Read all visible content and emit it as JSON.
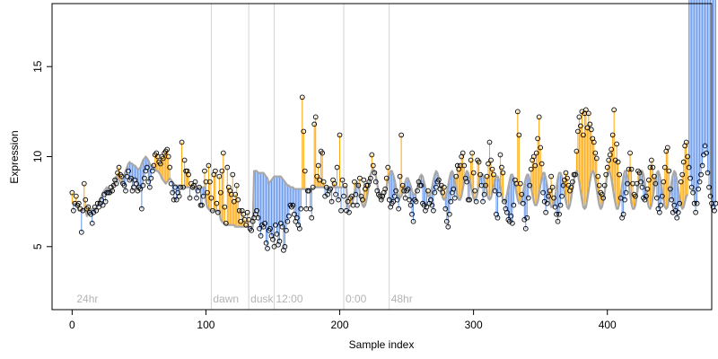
{
  "chart_data": {
    "type": "scatter",
    "xlabel": "Sample index",
    "ylabel": "Expression",
    "xlim": [
      -15,
      478
    ],
    "ylim": [
      1.5,
      18.5
    ],
    "x_ticks": [
      0,
      100,
      200,
      300,
      400
    ],
    "y_ticks": [
      5,
      10,
      15
    ],
    "grid": false,
    "phase_markers": [
      {
        "x": 2,
        "label": "24hr",
        "line": false
      },
      {
        "x": 104,
        "label": "dawn",
        "line": true
      },
      {
        "x": 132,
        "label": "dusk",
        "line": true
      },
      {
        "x": 151,
        "label": "12:00",
        "line": true
      },
      {
        "x": 203,
        "label": "0:00",
        "line": true
      },
      {
        "x": 237,
        "label": "48hr",
        "line": true
      }
    ],
    "colors": {
      "above_fit": "#ffa500",
      "below_fit": "#6495ed",
      "fit_line": "#a8a8a8",
      "points": "#000000",
      "phase_line": "#d3d3d3",
      "phase_label": "#b4b4b4"
    },
    "series": [
      {
        "type": "fit-line",
        "values": [
          7.4,
          7.4,
          7.4,
          7.3,
          7.2,
          7.0,
          7.0,
          7.0,
          7.0,
          7.1,
          7.0,
          6.7,
          6.9,
          7.0,
          7.1,
          7.1,
          7.1,
          7.0,
          7.2,
          7.3,
          7.5,
          7.6,
          7.8,
          8.0,
          8.1,
          8.2,
          8.3,
          8.2,
          8.1,
          8.0,
          8.1,
          8.5,
          8.8,
          8.9,
          8.8,
          8.7,
          8.6,
          8.5,
          8.7,
          9.0,
          9.2,
          9.4,
          9.6,
          9.7,
          9.6,
          9.6,
          9.5,
          9.5,
          9.4,
          9.3,
          9.3,
          9.4,
          9.6,
          9.8,
          9.9,
          10.0,
          9.9,
          9.8,
          9.6,
          9.5,
          9.5,
          9.4,
          9.3,
          9.2,
          9.2,
          9.1,
          9.0,
          8.8,
          8.7,
          8.6,
          8.5,
          8.6,
          8.7,
          8.8,
          8.7,
          8.6,
          8.5,
          8.4,
          8.4,
          8.4,
          8.4,
          8.4,
          8.3,
          8.3,
          8.3,
          8.3,
          8.3,
          8.3,
          8.3,
          8.3,
          8.2,
          8.2,
          8.2,
          8.3,
          8.3,
          8.3,
          8.3,
          8.3,
          8.3,
          8.3,
          7.5,
          7.2,
          7.1,
          7.0,
          7.0,
          7.0,
          7.0,
          7.0,
          7.0,
          7.0,
          7.0,
          6.5,
          6.4,
          6.3,
          6.3,
          6.2,
          6.2,
          6.2,
          6.2,
          6.2,
          6.2,
          6.2,
          6.1,
          6.1,
          6.1,
          6.1,
          6.1,
          6.1,
          6.1,
          6.1,
          6.1,
          6.1,
          6.1,
          6.1,
          6.1,
          6.1,
          9.2,
          9.2,
          9.2,
          9.1,
          9.1,
          9.1,
          9.1,
          9.1,
          9.0,
          8.9,
          8.8,
          8.5,
          8.6,
          8.7,
          8.8,
          8.9,
          8.9,
          8.9,
          8.9,
          8.9,
          8.9,
          8.8,
          8.7,
          8.6,
          8.5,
          8.4,
          8.4,
          8.3,
          8.3,
          8.3,
          8.2,
          8.2,
          8.2,
          8.2,
          8.2,
          8.2,
          8.2,
          8.2,
          8.2,
          8.2,
          8.2,
          8.2,
          8.2,
          8.2,
          8.2,
          8.3,
          8.3,
          8.3,
          8.3,
          8.3,
          8.3,
          8.3,
          8.3,
          8.3,
          8.3,
          8.3,
          8.3,
          8.3,
          8.3,
          8.3,
          8.3,
          8.3,
          8.3,
          8.3,
          8.3,
          8.3,
          8.3,
          8.3,
          8.3,
          8.3,
          7.2,
          7.2,
          7.3,
          7.4,
          7.6,
          8.0,
          8.4,
          8.6,
          8.4,
          8.0,
          7.6,
          7.3,
          7.2,
          7.3,
          7.6,
          8.0,
          8.5,
          9.0,
          9.2,
          9.3,
          9.2,
          8.9,
          8.5,
          8.1,
          7.8,
          7.6,
          7.6,
          7.8,
          8.0,
          8.3,
          8.7,
          9.0,
          9.2,
          9.2,
          9.0,
          8.7,
          8.3,
          8.0,
          7.8,
          7.7,
          7.8,
          8.0,
          8.3,
          8.6,
          8.8,
          8.8,
          8.6,
          8.4,
          8.1,
          7.9,
          7.9,
          8.0,
          8.3,
          8.6,
          8.9,
          9.0,
          8.9,
          8.6,
          8.3,
          8.0,
          7.8,
          7.8,
          8.0,
          8.3,
          8.7,
          9.0,
          9.2,
          9.1,
          8.8,
          8.4,
          8.0,
          7.7,
          7.6,
          7.7,
          8.0,
          8.4,
          8.8,
          9.1,
          9.2,
          9.0,
          8.6,
          8.2,
          7.8,
          7.6,
          7.6,
          7.8,
          8.2,
          8.6,
          9.0,
          9.2,
          9.1,
          8.8,
          8.4,
          8.0,
          7.7,
          7.6,
          7.7,
          8.0,
          8.4,
          8.8,
          9.0,
          9.0,
          8.8,
          8.4,
          8.0,
          7.7,
          7.6,
          7.7,
          8.0,
          8.4,
          8.7,
          8.9,
          8.9,
          8.7,
          8.3,
          7.9,
          7.6,
          7.5,
          7.6,
          7.9,
          8.3,
          8.7,
          9.0,
          9.0,
          8.8,
          8.4,
          8.0,
          7.6,
          7.4,
          7.4,
          7.6,
          8.0,
          8.4,
          8.8,
          9.0,
          9.0,
          8.7,
          8.3,
          7.9,
          7.5,
          7.3,
          7.3,
          7.5,
          7.9,
          8.4,
          8.8,
          9.1,
          9.1,
          8.8,
          8.4,
          7.9,
          7.5,
          7.2,
          7.2,
          7.4,
          7.8,
          8.3,
          8.8,
          9.1,
          9.1,
          8.9,
          8.5,
          8.0,
          7.5,
          7.2,
          7.1,
          7.3,
          7.7,
          8.2,
          8.7,
          9.1,
          9.2,
          9.0,
          8.6,
          8.1,
          7.6,
          7.2,
          7.1,
          7.2,
          7.6,
          8.1,
          8.6,
          9.0,
          9.2,
          9.1,
          8.7,
          8.2,
          7.7,
          7.3,
          7.1,
          7.2,
          7.5,
          8.0,
          8.5,
          9.0,
          9.2,
          9.1,
          8.8,
          8.3,
          7.8,
          7.4,
          7.1,
          7.1,
          7.4,
          7.9,
          8.4,
          8.9,
          9.2,
          9.2,
          8.9,
          8.4,
          7.9,
          7.4,
          7.1,
          7.1,
          7.3,
          7.8,
          8.3,
          8.8,
          9.2,
          9.2,
          9.0,
          8.5,
          8.0,
          7.5,
          7.2,
          7.1,
          7.3,
          7.7,
          8.2,
          8.7,
          9.1,
          9.2,
          9.0,
          8.6,
          8.1,
          7.6,
          7.2,
          7.1,
          7.2,
          7.6,
          8.1,
          8.6,
          9.0,
          9.2,
          9.1,
          8.7,
          8.2,
          7.7,
          7.3,
          7.1,
          7.2,
          7.5,
          7.8,
          7.9
        ]
      },
      {
        "type": "points",
        "values": [
          8.0,
          7.0,
          7.4,
          7.8,
          7.3,
          7.4,
          7.1,
          5.8,
          7.0,
          8.5,
          7.6,
          7.1,
          7.2,
          6.9,
          6.8,
          6.3,
          6.9,
          7.2,
          7.0,
          7.4,
          7.2,
          7.4,
          7.6,
          7.3,
          7.9,
          7.5,
          8.0,
          8.0,
          8.0,
          8.3,
          8.1,
          8.4,
          8.7,
          8.5,
          9.1,
          9.4,
          9.0,
          8.9,
          8.5,
          8.4,
          8.1,
          8.9,
          9.2,
          8.7,
          8.8,
          8.1,
          8.3,
          8.7,
          8.5,
          8.1,
          8.3,
          8.2,
          7.1,
          8.4,
          8.8,
          9.2,
          9.4,
          8.6,
          8.3,
          8.8,
          9.2,
          9.5,
          10.1,
          10.2,
          10.0,
          9.7,
          9.6,
          10.0,
          9.9,
          10.2,
          10.3,
          10.4,
          10.0,
          9.4,
          8.5,
          8.0,
          7.6,
          8.3,
          7.6,
          8.0,
          7.8,
          8.3,
          10.8,
          8.3,
          9.8,
          9.2,
          9.2,
          9.0,
          7.7,
          8.5,
          8.3,
          8.4,
          8.6,
          7.7,
          8.1,
          8.3,
          7.3,
          7.3,
          7.8,
          9.2,
          8.6,
          8.0,
          9.5,
          8.6,
          7.7,
          7.0,
          9.0,
          9.2,
          7.4,
          6.9,
          8.9,
          8.0,
          9.2,
          10.2,
          7.2,
          6.3,
          9.4,
          8.3,
          8.1,
          7.9,
          9.0,
          7.5,
          7.9,
          8.4,
          7.6,
          7.0,
          6.4,
          7.0,
          6.8,
          6.5,
          6.2,
          6.9,
          6.5,
          6.0,
          5.9,
          6.4,
          6.6,
          6.8,
          7.0,
          6.6,
          6.0,
          5.6,
          6.2,
          6.1,
          6.3,
          5.2,
          4.9,
          5.9,
          6.0,
          5.6,
          5.4,
          5.0,
          6.2,
          5.7,
          5.1,
          5.3,
          6.3,
          6.1,
          4.8,
          5.0,
          5.9,
          6.4,
          6.7,
          7.3,
          7.2,
          7.3,
          6.8,
          6.4,
          6.6,
          6.2,
          6.0,
          7.1,
          13.3,
          11.4,
          9.2,
          7.1,
          8.1,
          8.1,
          7.1,
          6.6,
          8.3,
          11.8,
          12.2,
          8.9,
          9.5,
          8.7,
          10.3,
          10.2,
          8.6,
          7.8,
          8.3,
          7.9,
          8.1,
          8.2,
          7.5,
          8.7,
          8.5,
          7.9,
          9.4,
          7.6,
          11.2,
          7.0,
          8.7,
          7.8,
          8.4,
          7.0,
          7.5,
          6.9,
          7.7,
          7.8,
          7.3,
          8.6,
          7.9,
          7.3,
          8.4,
          8.8,
          7.8,
          7.6,
          8.7,
          8.2,
          8.4,
          8.4,
          8.6,
          8.8,
          10.1,
          9.5,
          9.1,
          8.6,
          8.1,
          7.9,
          7.8,
          7.6,
          7.8,
          8.0,
          8.2,
          8.8,
          9.4,
          7.6,
          7.2,
          7.4,
          7.5,
          7.8,
          8.1,
          7.6,
          7.1,
          8.9,
          11.2,
          8.4,
          8.1,
          7.7,
          8.1,
          8.2,
          7.6,
          7.3,
          6.8,
          6.4,
          7.6,
          7.5,
          8.1,
          8.6,
          8.4,
          8.4,
          7.4,
          7.3,
          7.0,
          7.2,
          8.1,
          7.4,
          7.6,
          7.3,
          7.0,
          8.0,
          8.3,
          8.6,
          8.7,
          8.2,
          8.4,
          8.0,
          8.3,
          7.1,
          6.4,
          6.1,
          6.8,
          7.5,
          8.0,
          8.2,
          7.7,
          8.9,
          9.5,
          9.3,
          9.5,
          10.0,
          10.2,
          9.5,
          8.8,
          8.6,
          7.6,
          7.6,
          9.8,
          10.2,
          9.1,
          8.1,
          7.5,
          9.8,
          9.7,
          9.0,
          8.4,
          7.5,
          7.9,
          8.4,
          8.9,
          9.6,
          10.8,
          9.8,
          9.3,
          9.0,
          8.1,
          6.8,
          6.6,
          7.9,
          10.1,
          9.4,
          9.1,
          7.5,
          7.1,
          6.9,
          6.5,
          6.4,
          6.7,
          6.3,
          7.3,
          8.7,
          8.5,
          12.5,
          11.2,
          8.5,
          7.9,
          7.4,
          6.5,
          6.0,
          6.6,
          7.7,
          8.4,
          9.3,
          9.8,
          10.0,
          9.5,
          10.2,
          11.0,
          12.2,
          10.5,
          9.6,
          8.0,
          7.5,
          6.9,
          7.4,
          7.8,
          8.1,
          8.9,
          8.3,
          7.7,
          7.2,
          6.8,
          6.4,
          6.8,
          7.3,
          7.8,
          8.4,
          8.7,
          9.1,
          8.8,
          8.4,
          8.1,
          8.3,
          8.6,
          9.0,
          9.0,
          10.3,
          11.4,
          12.2,
          11.7,
          12.5,
          11.2,
          12.4,
          12.6,
          11.6,
          12.4,
          11.8,
          11.5,
          11.0,
          10.8,
          10.2,
          9.9,
          8.9,
          8.4,
          8.0,
          7.9,
          7.7,
          8.4,
          9.0,
          9.4,
          9.8,
          10.1,
          10.4,
          11.2,
          12.6,
          9.8,
          10.7,
          9.7,
          9.0,
          7.7,
          6.6,
          6.8,
          7.6,
          8.0,
          8.5,
          9.3,
          10.2,
          9.3,
          8.5,
          7.9,
          7.8,
          8.5,
          9.2,
          9.1,
          8.6,
          8.3,
          7.7,
          7.6,
          7.8,
          8.2,
          8.7,
          9.4,
          9.8,
          9.4,
          8.9,
          8.5,
          7.7,
          7.1,
          6.9,
          7.3,
          7.8,
          8.6,
          9.4,
          10.3,
          10.5,
          9.2,
          8.2,
          7.6,
          6.9,
          7.3,
          7.0,
          6.6,
          6.9,
          7.4,
          8.6,
          9.0,
          9.7,
          10.6,
          10.8,
          10.0,
          9.4,
          8.8,
          8.3,
          8.0,
          7.4,
          6.9,
          7.4,
          8.2,
          8.6,
          9.0,
          9.5,
          10.1,
          10.6,
          10.2,
          9.1,
          8.3,
          7.8,
          7.4,
          7.2,
          7.0,
          7.4
        ]
      }
    ]
  }
}
